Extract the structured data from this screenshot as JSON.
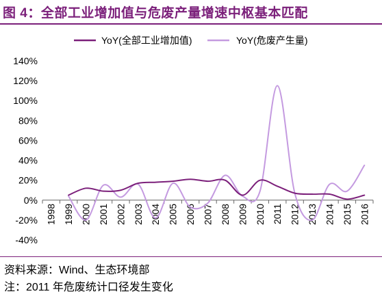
{
  "title": "图 4：全部工业增加值与危废产量增速中枢基本匹配",
  "footnote_source": "资料来源：Wind、生态环境部",
  "footnote_note": "注：2011 年危废统计口径发生变化",
  "chart_data": {
    "type": "line",
    "title": "",
    "xlabel": "",
    "ylabel": "",
    "x": [
      "1998",
      "1999",
      "2000",
      "2001",
      "2002",
      "2003",
      "2004",
      "2005",
      "2006",
      "2007",
      "2008",
      "2009",
      "2010",
      "2011",
      "2012",
      "2013",
      "2014",
      "2015",
      "2016"
    ],
    "y_ticks": [
      "140%",
      "120%",
      "100%",
      "80%",
      "60%",
      "40%",
      "20%",
      "0%",
      "-20%",
      "-40%"
    ],
    "ylim": [
      -0.4,
      1.4
    ],
    "grid": false,
    "legend_position": "top",
    "series": [
      {
        "name": "YoY(全部工业增加值)",
        "color": "#7B1F7A",
        "values": [
          null,
          0.05,
          0.12,
          0.09,
          0.1,
          0.17,
          0.18,
          0.19,
          0.21,
          0.19,
          0.2,
          0.05,
          0.2,
          0.14,
          0.07,
          0.06,
          0.06,
          0.01,
          0.05
        ]
      },
      {
        "name": "YoY(危废产生量)",
        "color": "#C49AE0",
        "values": [
          null,
          0.04,
          -0.2,
          0.15,
          0.03,
          0.16,
          -0.18,
          0.17,
          -0.07,
          -0.03,
          0.25,
          0.04,
          0.09,
          1.15,
          0.07,
          -0.2,
          0.16,
          0.09,
          0.35
        ]
      }
    ]
  }
}
